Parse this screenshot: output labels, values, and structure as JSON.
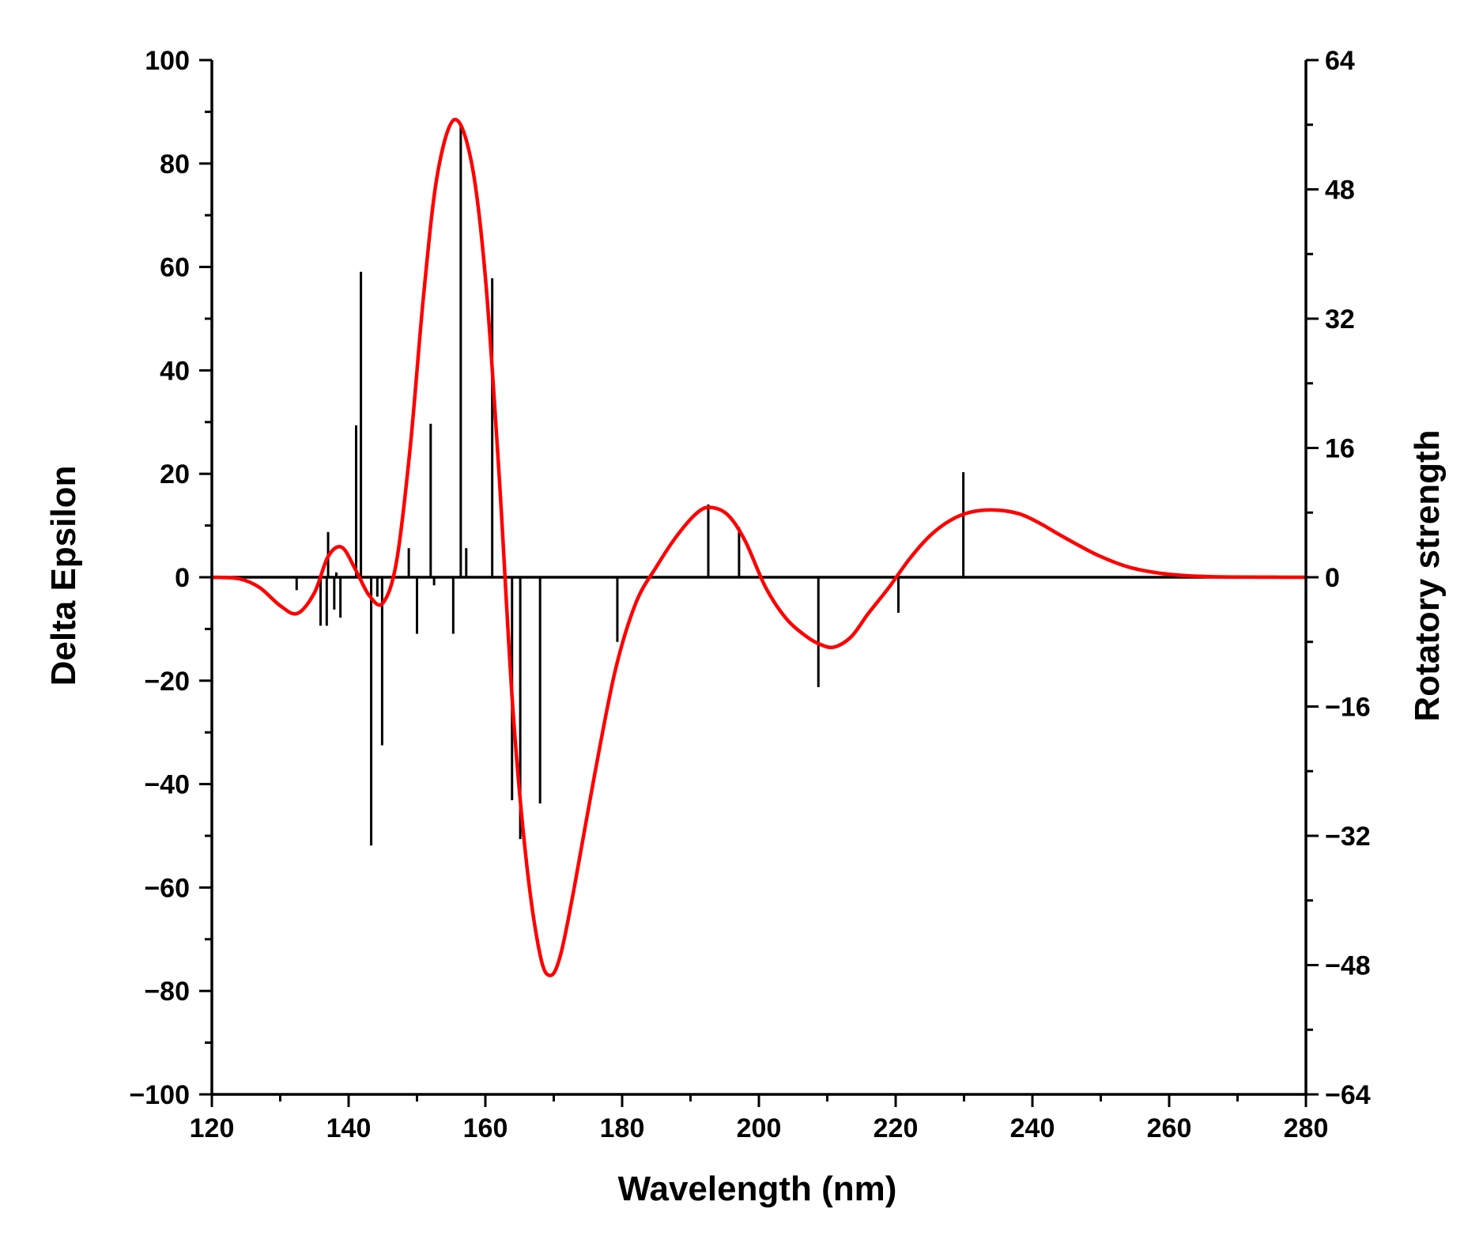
{
  "chart_data": {
    "type": "line",
    "title": "",
    "xlabel": "Wavelength (nm)",
    "ylabel": "Delta Epsilon",
    "y2label": "Rotatory strength",
    "xlim": [
      120,
      280
    ],
    "ylim": [
      -100,
      100
    ],
    "y2lim": [
      -64,
      64
    ],
    "xticks": [
      120,
      140,
      160,
      180,
      200,
      220,
      240,
      260,
      280
    ],
    "yticks": [
      -100,
      -80,
      -60,
      -40,
      -20,
      0,
      20,
      40,
      60,
      80,
      100
    ],
    "y2ticks": [
      -64,
      -48,
      -32,
      -16,
      0,
      16,
      32,
      48,
      64
    ],
    "xtick_labels": [
      "120",
      "140",
      "160",
      "180",
      "200",
      "220",
      "240",
      "260",
      "280"
    ],
    "ytick_labels": [
      "−100",
      "−80",
      "−60",
      "−40",
      "−20",
      "0",
      "20",
      "40",
      "60",
      "80",
      "100"
    ],
    "y2tick_labels": [
      "−64",
      "−48",
      "−32",
      "−16",
      "0",
      "16",
      "32",
      "48",
      "64"
    ],
    "grid": false,
    "legend": "none",
    "colors": {
      "spectrum": "#ff0000",
      "sticks": "#000000",
      "axes": "#000000"
    },
    "series": [
      {
        "kind": "line",
        "axis": "left",
        "x": [
          120,
          124,
          127,
          130,
          132.5,
          135,
          137,
          139,
          141,
          143,
          145,
          147,
          149,
          151,
          153,
          155.5,
          158,
          160,
          162,
          164,
          166,
          168,
          169.5,
          171,
          173,
          176,
          179,
          182,
          185,
          188,
          191,
          193,
          195.5,
          198,
          201,
          204,
          207,
          209,
          211,
          213.5,
          216,
          219,
          222,
          225,
          228,
          231,
          234.5,
          238,
          241,
          244,
          247,
          250,
          254,
          258,
          262,
          266,
          270,
          275,
          280
        ],
        "y": [
          0,
          -0.3,
          -2,
          -5.5,
          -7,
          -3,
          4,
          5.8,
          1.5,
          -3.5,
          -5,
          3,
          25,
          55,
          78,
          88.5,
          80,
          58,
          20,
          -25,
          -55,
          -73,
          -77,
          -73,
          -60,
          -38,
          -18,
          -5,
          2,
          8,
          12.5,
          13.5,
          12,
          7,
          -2,
          -8,
          -11.5,
          -13,
          -13.5,
          -11.5,
          -7,
          -2,
          3.5,
          8,
          11,
          12.6,
          13,
          12.3,
          10.5,
          8.2,
          6,
          4,
          2,
          0.9,
          0.35,
          0.12,
          0.04,
          0.01,
          0
        ]
      },
      {
        "kind": "stick",
        "axis": "right",
        "x": [
          132.4,
          135.9,
          136.8,
          137.0,
          137.9,
          138.2,
          138.8,
          141.1,
          141.8,
          143.3,
          144.2,
          144.9,
          148.8,
          150.0,
          152.0,
          152.5,
          155.3,
          156.4,
          157.2,
          161.0,
          163.9,
          165.1,
          168.0,
          179.3,
          192.6,
          197.1,
          208.7,
          220.4,
          229.9
        ],
        "y": [
          -1.6,
          -6.0,
          -6.0,
          5.6,
          -4.0,
          0.6,
          -5.0,
          18.8,
          37.8,
          -33.2,
          -2.4,
          -20.8,
          3.6,
          -7.0,
          19.0,
          -1.0,
          -7.0,
          56.0,
          3.6,
          37.0,
          -27.6,
          -32.4,
          -28.0,
          -8.0,
          9.0,
          6.2,
          -13.6,
          -4.4,
          13.0
        ]
      }
    ]
  }
}
